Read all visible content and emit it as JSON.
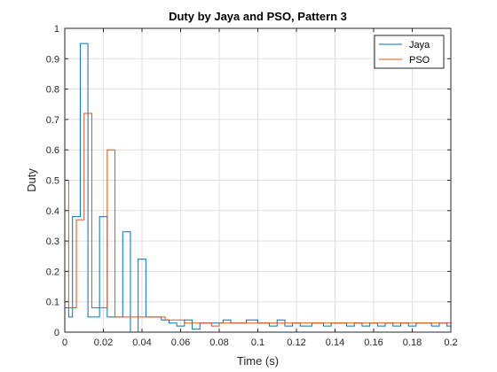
{
  "chart_data": {
    "type": "line",
    "step": true,
    "title": "Duty by Jaya and PSO, Pattern 3",
    "xlabel": "Time (s)",
    "ylabel": "Duty",
    "xlim": [
      0,
      0.2
    ],
    "ylim": [
      0,
      1
    ],
    "xticks": [
      0,
      0.02,
      0.04,
      0.06,
      0.08,
      0.1,
      0.12,
      0.14,
      0.16,
      0.18,
      0.2
    ],
    "xtick_labels": [
      "0",
      "0.02",
      "0.04",
      "0.06",
      "0.08",
      "0.1",
      "0.12",
      "0.14",
      "0.16",
      "0.18",
      "0.2"
    ],
    "yticks": [
      0,
      0.1,
      0.2,
      0.3,
      0.4,
      0.5,
      0.6,
      0.7,
      0.8,
      0.9,
      1
    ],
    "ytick_labels": [
      "0",
      "0.1",
      "0.2",
      "0.3",
      "0.4",
      "0.5",
      "0.6",
      "0.7",
      "0.8",
      "0.9",
      "1"
    ],
    "grid": true,
    "legend_position": "top-right",
    "series": [
      {
        "name": "Jaya",
        "color": "#0072BD",
        "x": [
          0,
          0.002,
          0.004,
          0.006,
          0.008,
          0.01,
          0.012,
          0.014,
          0.016,
          0.018,
          0.02,
          0.022,
          0.024,
          0.026,
          0.028,
          0.03,
          0.032,
          0.034,
          0.036,
          0.038,
          0.04,
          0.042,
          0.044,
          0.046,
          0.048,
          0.05,
          0.052,
          0.054,
          0.056,
          0.058,
          0.06,
          0.062,
          0.064,
          0.066,
          0.068,
          0.07,
          0.072,
          0.074,
          0.076,
          0.078,
          0.08,
          0.082,
          0.084,
          0.086,
          0.088,
          0.09,
          0.092,
          0.094,
          0.096,
          0.098,
          0.1,
          0.102,
          0.104,
          0.106,
          0.108,
          0.11,
          0.112,
          0.114,
          0.116,
          0.118,
          0.12,
          0.122,
          0.124,
          0.126,
          0.128,
          0.13,
          0.132,
          0.134,
          0.136,
          0.138,
          0.14,
          0.142,
          0.144,
          0.146,
          0.148,
          0.15,
          0.152,
          0.154,
          0.156,
          0.158,
          0.16,
          0.162,
          0.164,
          0.166,
          0.168,
          0.17,
          0.172,
          0.174,
          0.176,
          0.178,
          0.18,
          0.182,
          0.184,
          0.186,
          0.188,
          0.19,
          0.192,
          0.194,
          0.196,
          0.198
        ],
        "y": [
          0.08,
          0.05,
          0.38,
          0.38,
          0.95,
          0.95,
          0.05,
          0.05,
          0.05,
          0.38,
          0.38,
          0.05,
          0.05,
          0.05,
          0.05,
          0.33,
          0.33,
          0.0,
          0.0,
          0.24,
          0.24,
          0.05,
          0.05,
          0.05,
          0.05,
          0.04,
          0.04,
          0.03,
          0.03,
          0.02,
          0.02,
          0.04,
          0.04,
          0.01,
          0.01,
          0.03,
          0.03,
          0.03,
          0.03,
          0.03,
          0.03,
          0.04,
          0.04,
          0.03,
          0.03,
          0.03,
          0.03,
          0.04,
          0.04,
          0.04,
          0.03,
          0.03,
          0.03,
          0.02,
          0.02,
          0.04,
          0.04,
          0.02,
          0.02,
          0.03,
          0.03,
          0.02,
          0.02,
          0.02,
          0.03,
          0.03,
          0.03,
          0.02,
          0.02,
          0.03,
          0.03,
          0.03,
          0.03,
          0.02,
          0.02,
          0.03,
          0.03,
          0.02,
          0.02,
          0.03,
          0.03,
          0.02,
          0.02,
          0.03,
          0.03,
          0.02,
          0.02,
          0.03,
          0.03,
          0.02,
          0.02,
          0.03,
          0.03,
          0.03,
          0.03,
          0.02,
          0.02,
          0.03,
          0.03,
          0.02
        ]
      },
      {
        "name": "PSO",
        "color": "#D95319",
        "x": [
          0,
          0.002,
          0.004,
          0.006,
          0.008,
          0.01,
          0.012,
          0.014,
          0.016,
          0.018,
          0.02,
          0.022,
          0.024,
          0.026,
          0.028,
          0.03,
          0.032,
          0.034,
          0.036,
          0.038,
          0.04,
          0.042,
          0.044,
          0.046,
          0.048,
          0.05,
          0.052,
          0.054,
          0.056,
          0.058,
          0.06,
          0.062,
          0.064,
          0.066,
          0.068,
          0.07,
          0.072,
          0.074,
          0.076,
          0.078,
          0.08,
          0.082,
          0.084,
          0.086,
          0.088,
          0.09,
          0.092,
          0.094,
          0.096,
          0.098,
          0.1,
          0.102,
          0.104,
          0.106,
          0.108,
          0.11,
          0.112,
          0.114,
          0.116,
          0.118,
          0.12,
          0.122,
          0.124,
          0.126,
          0.128,
          0.13,
          0.132,
          0.134,
          0.136,
          0.138,
          0.14,
          0.142,
          0.144,
          0.146,
          0.148,
          0.15,
          0.152,
          0.154,
          0.156,
          0.158,
          0.16,
          0.162,
          0.164,
          0.166,
          0.168,
          0.17,
          0.172,
          0.174,
          0.176,
          0.178,
          0.18,
          0.182,
          0.184,
          0.186,
          0.188,
          0.19,
          0.192,
          0.194,
          0.196,
          0.198
        ],
        "y": [
          0.5,
          0.08,
          0.08,
          0.37,
          0.37,
          0.72,
          0.72,
          0.08,
          0.08,
          0.08,
          0.08,
          0.6,
          0.6,
          0.05,
          0.05,
          0.05,
          0.05,
          0.05,
          0.05,
          0.05,
          0.05,
          0.05,
          0.05,
          0.05,
          0.05,
          0.05,
          0.04,
          0.04,
          0.04,
          0.04,
          0.04,
          0.03,
          0.03,
          0.03,
          0.03,
          0.03,
          0.03,
          0.03,
          0.02,
          0.02,
          0.03,
          0.03,
          0.03,
          0.03,
          0.03,
          0.03,
          0.03,
          0.03,
          0.03,
          0.03,
          0.03,
          0.03,
          0.03,
          0.03,
          0.03,
          0.03,
          0.03,
          0.03,
          0.03,
          0.03,
          0.03,
          0.03,
          0.03,
          0.03,
          0.03,
          0.03,
          0.03,
          0.03,
          0.03,
          0.03,
          0.03,
          0.03,
          0.03,
          0.03,
          0.03,
          0.03,
          0.03,
          0.03,
          0.03,
          0.03,
          0.03,
          0.03,
          0.03,
          0.03,
          0.03,
          0.03,
          0.03,
          0.03,
          0.03,
          0.03,
          0.03,
          0.03,
          0.03,
          0.03,
          0.03,
          0.03,
          0.03,
          0.03,
          0.03,
          0.03
        ]
      }
    ]
  }
}
